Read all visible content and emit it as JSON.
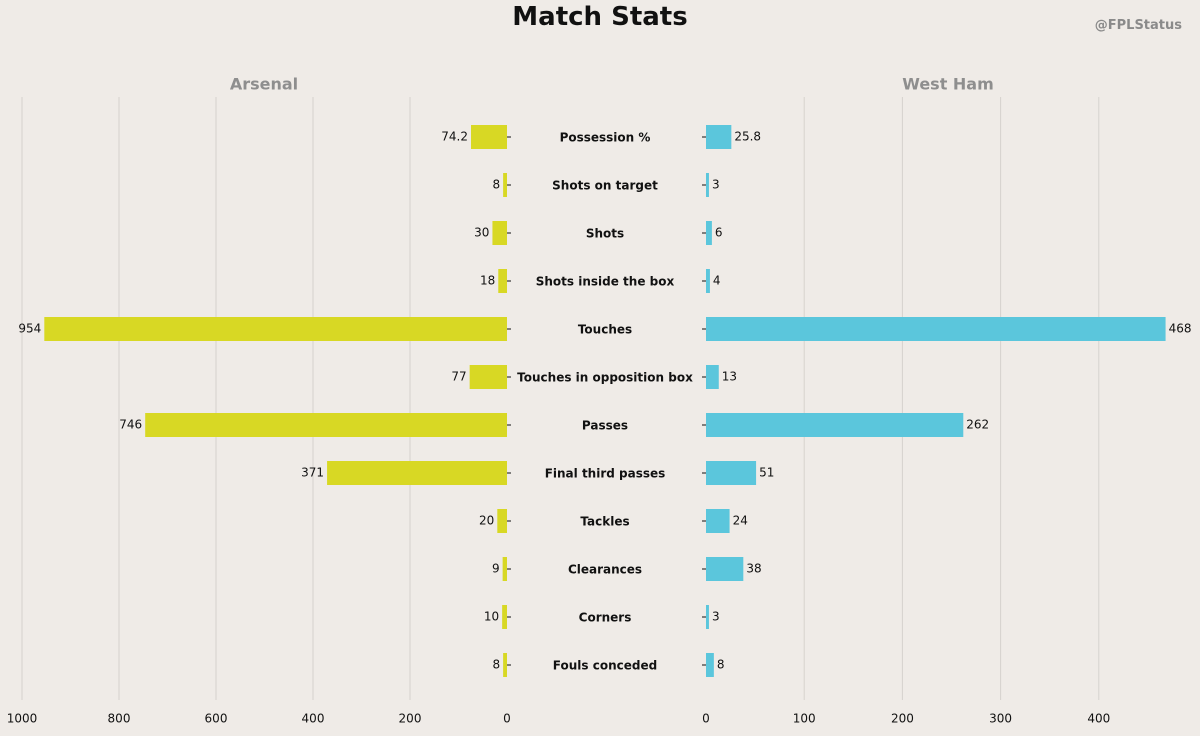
{
  "header": {
    "title": "Match Stats",
    "watermark": "@FPLStatus"
  },
  "colors": {
    "left": "#d8d824",
    "right": "#5bc6dc",
    "grid": "#d6d2ce",
    "background": "#efebe7"
  },
  "chart_data": {
    "type": "bar",
    "orientation": "horizontal-diverging",
    "title": "Match Stats",
    "categories": [
      "Possession %",
      "Shots on target",
      "Shots",
      "Shots inside the box",
      "Touches",
      "Touches in opposition box",
      "Passes",
      "Final third passes",
      "Tackles",
      "Clearances",
      "Corners",
      "Fouls conceded"
    ],
    "series": [
      {
        "name": "Arsenal",
        "values": [
          74.2,
          8,
          30,
          18,
          954,
          77,
          746,
          371,
          20,
          9,
          10,
          8
        ],
        "value_labels": [
          "74.2",
          "8",
          "30",
          "18",
          "954",
          "77",
          "746",
          "371",
          "20",
          "9",
          "10",
          "8"
        ],
        "xlim": [
          1000,
          0
        ],
        "ticks": [
          1000,
          800,
          600,
          400,
          200,
          0
        ]
      },
      {
        "name": "West Ham",
        "values": [
          25.8,
          3,
          6,
          4,
          468,
          13,
          262,
          51,
          24,
          38,
          3,
          8
        ],
        "value_labels": [
          "25.8",
          "3",
          "6",
          "4",
          "468",
          "13",
          "262",
          "51",
          "24",
          "38",
          "3",
          "8"
        ],
        "xlim": [
          0,
          470
        ],
        "ticks": [
          0,
          100,
          200,
          300,
          400
        ]
      }
    ],
    "grid": true,
    "legend": "none"
  }
}
